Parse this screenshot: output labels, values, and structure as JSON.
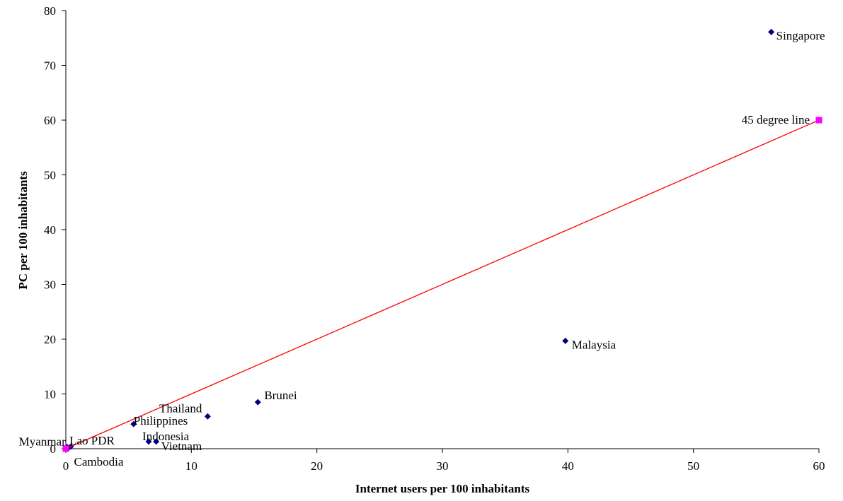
{
  "chart_data": {
    "type": "scatter",
    "xlabel": "Internet users per 100 inhabitants",
    "ylabel": "PC per 100 inhabitants",
    "xlim": [
      0,
      60
    ],
    "ylim": [
      0,
      80
    ],
    "xticks": [
      0,
      10,
      20,
      30,
      40,
      50,
      60
    ],
    "yticks": [
      0,
      10,
      20,
      30,
      40,
      50,
      60,
      70,
      80
    ],
    "grid": false,
    "colors": {
      "points": "#000080",
      "line": "#ff0000",
      "line_markers": "#ff00ff"
    },
    "series": [
      {
        "marker": "diamond",
        "points": [
          {
            "label": "Singapore",
            "x": 56.2,
            "y": 76.1
          },
          {
            "label": "Malaysia",
            "x": 39.8,
            "y": 19.7
          },
          {
            "label": "Brunei",
            "x": 15.3,
            "y": 8.5
          },
          {
            "label": "Thailand",
            "x": 11.3,
            "y": 5.9
          },
          {
            "label": "Philippines",
            "x": 5.4,
            "y": 4.5
          },
          {
            "label": "Indonesia",
            "x": 6.6,
            "y": 1.3
          },
          {
            "label": "Vietnam",
            "x": 7.2,
            "y": 1.3
          },
          {
            "label": "Myanmar",
            "x": 0.1,
            "y": 0.3
          },
          {
            "label": "Lao PDR",
            "x": 0.4,
            "y": 0.4
          },
          {
            "label": "Cambodia",
            "x": 0.2,
            "y": 0.1
          }
        ]
      },
      {
        "marker": "square",
        "line": true,
        "points": [
          {
            "label": "",
            "x": 0,
            "y": 0
          },
          {
            "label": "45 degree line",
            "x": 60,
            "y": 60
          }
        ]
      }
    ]
  }
}
